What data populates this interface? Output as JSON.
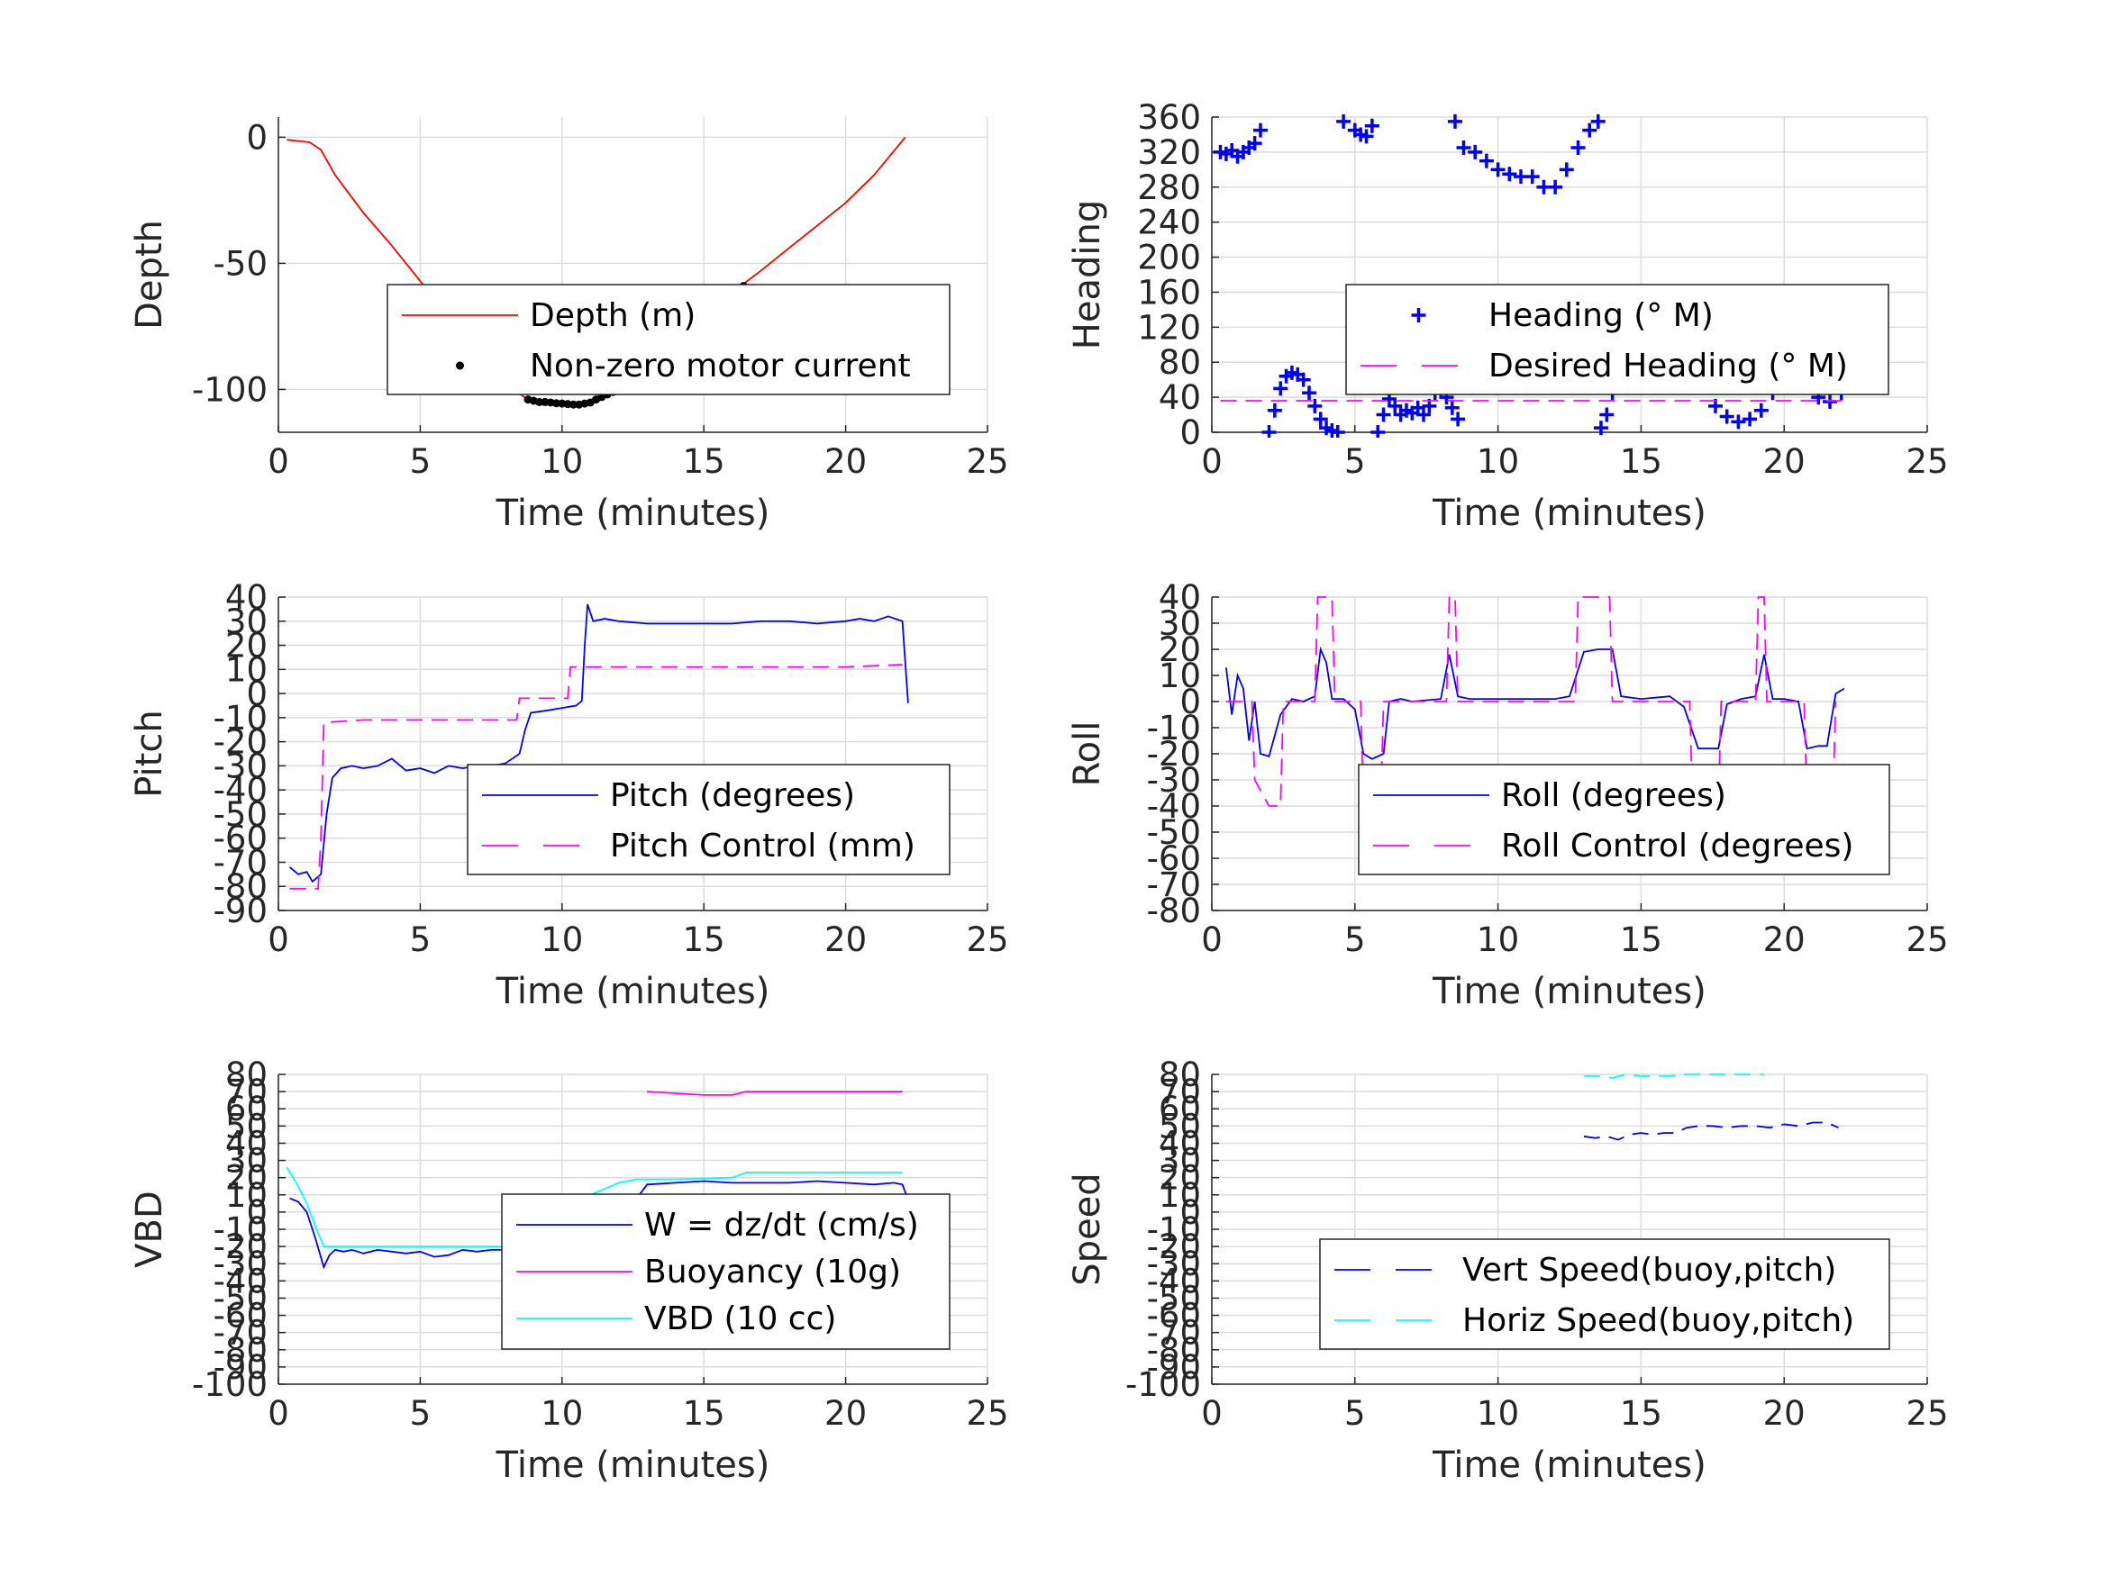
{
  "chart_data": [
    {
      "id": "depth",
      "type": "line",
      "xlabel": "Time (minutes)",
      "ylabel": "Depth",
      "xlim": [
        0,
        25
      ],
      "ylim": [
        -117,
        8
      ],
      "xticks": [
        0,
        5,
        10,
        15,
        20,
        25
      ],
      "yticks": [
        0,
        -50,
        -100
      ],
      "grid": true,
      "legend_position": "right",
      "series": [
        {
          "name": "Depth (m)",
          "style": "line",
          "color": "#ff0000",
          "x": [
            0.3,
            1.1,
            1.5,
            2.0,
            3.0,
            4.0,
            5.0,
            6.0,
            7.0,
            8.0,
            8.8,
            9.5,
            10.6,
            11.2,
            12.0,
            13.0,
            14.0,
            15.0,
            16.3,
            17.0,
            18.0,
            19.0,
            20.0,
            21.0,
            22.1
          ],
          "y": [
            -1,
            -2,
            -5,
            -15,
            -30,
            -43,
            -57,
            -72,
            -86,
            -98,
            -104,
            -105,
            -106,
            -104,
            -98,
            -88,
            -78,
            -69,
            -59,
            -53,
            -44,
            -35,
            -26,
            -15,
            0
          ]
        },
        {
          "name": "Non-zero motor current",
          "style": "marker",
          "color": "#000000",
          "x": [
            8.8,
            9.0,
            9.2,
            9.4,
            9.6,
            9.8,
            10.0,
            10.2,
            10.4,
            10.6,
            10.8,
            11.0,
            11.2,
            11.4,
            11.6,
            11.8,
            12.0,
            12.2,
            12.4,
            14.1,
            16.2,
            16.4
          ],
          "y": [
            -104,
            -104.5,
            -105,
            -105,
            -105.2,
            -105.5,
            -105.6,
            -105.8,
            -106,
            -106,
            -105.6,
            -105.2,
            -104,
            -103,
            -102,
            -101,
            -99,
            -97,
            -95,
            -79,
            -60,
            -59
          ]
        }
      ]
    },
    {
      "id": "heading",
      "type": "line",
      "xlabel": "Time (minutes)",
      "ylabel": "Heading",
      "xlim": [
        0,
        25
      ],
      "ylim": [
        0,
        360
      ],
      "xticks": [
        0,
        5,
        10,
        15,
        20,
        25
      ],
      "yticks": [
        0,
        40,
        80,
        120,
        160,
        200,
        240,
        280,
        320,
        360
      ],
      "grid": true,
      "legend_position": "right",
      "series": [
        {
          "name": "Heading (° M)",
          "style": "plus",
          "color": "#0000ff",
          "x": [
            0.3,
            0.5,
            0.7,
            0.9,
            1.1,
            1.3,
            1.5,
            1.7,
            2.0,
            2.2,
            2.4,
            2.6,
            2.8,
            3.0,
            3.2,
            3.4,
            3.6,
            3.8,
            4.0,
            4.2,
            4.4,
            4.6,
            5.0,
            5.2,
            5.4,
            5.6,
            5.8,
            6.0,
            6.2,
            6.4,
            6.6,
            6.8,
            7.0,
            7.2,
            7.4,
            7.6,
            7.8,
            8.0,
            8.2,
            8.4,
            8.6,
            8.5,
            8.8,
            9.2,
            9.6,
            10.0,
            10.4,
            10.8,
            11.2,
            11.6,
            12.0,
            12.4,
            12.8,
            13.2,
            13.5,
            13.6,
            13.8,
            14.0,
            14.3,
            14.6,
            15.0,
            15.4,
            15.7,
            16.0,
            16.4,
            16.8,
            17.2,
            17.6,
            18.0,
            18.4,
            18.8,
            19.2,
            19.6,
            20.0,
            20.4,
            20.8,
            21.2,
            21.6,
            22.0
          ],
          "y": [
            320,
            318,
            322,
            315,
            320,
            325,
            330,
            345,
            0,
            25,
            50,
            64,
            68,
            66,
            60,
            45,
            30,
            15,
            5,
            2,
            0,
            355,
            345,
            340,
            338,
            350,
            0,
            20,
            38,
            30,
            20,
            25,
            22,
            28,
            20,
            30,
            45,
            50,
            40,
            28,
            15,
            355,
            325,
            320,
            310,
            300,
            295,
            292,
            292,
            280,
            280,
            300,
            325,
            345,
            355,
            5,
            20,
            45,
            75,
            110,
            140,
            155,
            158,
            150,
            125,
            95,
            60,
            30,
            18,
            12,
            15,
            25,
            45,
            55,
            62,
            55,
            40,
            35,
            45
          ]
        },
        {
          "name": "Desired Heading (° M)",
          "style": "dashed",
          "color": "#ff00ff",
          "x": [
            0.3,
            22.1
          ],
          "y": [
            36,
            36
          ]
        }
      ]
    },
    {
      "id": "pitch",
      "type": "line",
      "xlabel": "Time (minutes)",
      "ylabel": "Pitch",
      "xlim": [
        0,
        25
      ],
      "ylim": [
        -90,
        40
      ],
      "xticks": [
        0,
        5,
        10,
        15,
        20,
        25
      ],
      "yticks": [
        40,
        30,
        20,
        10,
        0,
        -10,
        -20,
        -30,
        -40,
        -50,
        -60,
        -70,
        -80,
        -90
      ],
      "grid": true,
      "legend_position": "right",
      "series": [
        {
          "name": "Pitch (degrees)",
          "style": "line",
          "color": "#0000ff",
          "x": [
            0.4,
            0.7,
            1.0,
            1.2,
            1.5,
            1.7,
            1.9,
            2.2,
            2.6,
            3.0,
            3.5,
            4.0,
            4.5,
            5.0,
            5.5,
            6.0,
            6.5,
            7.0,
            7.5,
            8.0,
            8.5,
            8.7,
            8.9,
            9.5,
            10.0,
            10.5,
            10.7,
            10.8,
            10.9,
            11.1,
            11.5,
            12.0,
            13.0,
            14.0,
            15.0,
            16.0,
            17.0,
            18.0,
            19.0,
            20.0,
            20.5,
            21.0,
            21.5,
            22.0,
            22.2
          ],
          "y": [
            -72,
            -75,
            -74,
            -78,
            -75,
            -50,
            -35,
            -31,
            -30,
            -31,
            -30,
            -27,
            -32,
            -31,
            -33,
            -30,
            -31,
            -30,
            -30,
            -29,
            -25,
            -15,
            -8,
            -7,
            -6,
            -5,
            -3,
            20,
            37,
            30,
            31,
            30,
            29,
            29,
            29,
            29,
            30,
            30,
            29,
            30,
            31,
            30,
            32,
            30,
            -4
          ]
        },
        {
          "name": "Pitch Control (mm)",
          "style": "dashed",
          "color": "#ff00ff",
          "x": [
            0.4,
            1.4,
            1.5,
            1.6,
            3.0,
            5.0,
            7.0,
            8.4,
            8.5,
            10.2,
            10.3,
            10.9,
            11.0,
            15.0,
            20.0,
            22.0
          ],
          "y": [
            -81,
            -81,
            -60,
            -12,
            -11,
            -11,
            -11,
            -11,
            -2,
            -2,
            11,
            11,
            11,
            11,
            11,
            12
          ]
        }
      ]
    },
    {
      "id": "roll",
      "type": "line",
      "xlabel": "Time (minutes)",
      "ylabel": "Roll",
      "xlim": [
        0,
        25
      ],
      "ylim": [
        -80,
        40
      ],
      "xticks": [
        0,
        5,
        10,
        15,
        20,
        25
      ],
      "yticks": [
        40,
        30,
        20,
        10,
        0,
        -10,
        -20,
        -30,
        -40,
        -50,
        -60,
        -70,
        -80
      ],
      "grid": true,
      "legend_position": "right",
      "series": [
        {
          "name": "Roll (degrees)",
          "style": "line",
          "color": "#0000ff",
          "x": [
            0.5,
            0.7,
            0.9,
            1.1,
            1.3,
            1.5,
            1.7,
            2.0,
            2.4,
            2.8,
            3.2,
            3.6,
            3.8,
            4.0,
            4.2,
            4.6,
            5.0,
            5.3,
            5.6,
            6.0,
            6.2,
            6.6,
            7.0,
            8.0,
            8.3,
            8.6,
            9.0,
            10.0,
            11.0,
            12.0,
            12.5,
            13.0,
            13.5,
            14.0,
            14.3,
            15.0,
            16.0,
            16.5,
            17.0,
            17.7,
            18.0,
            18.5,
            19.0,
            19.3,
            19.6,
            20.0,
            20.5,
            20.8,
            21.2,
            21.5,
            21.8,
            22.1
          ],
          "y": [
            13,
            -5,
            10,
            5,
            -15,
            0,
            -20,
            -21,
            -5,
            1,
            0,
            2,
            20,
            15,
            1,
            1,
            -3,
            -20,
            -22,
            -20,
            0,
            1,
            0,
            1,
            18,
            2,
            1,
            1,
            1,
            1,
            2,
            19,
            20,
            20,
            2,
            1,
            2,
            -2,
            -18,
            -18,
            -1,
            1,
            2,
            18,
            1,
            1,
            0,
            -18,
            -17,
            -17,
            3,
            5
          ]
        },
        {
          "name": "Roll Control (degrees)",
          "style": "dashed",
          "color": "#ff00ff",
          "x": [
            0.5,
            1.4,
            1.5,
            2.0,
            2.4,
            2.5,
            3.6,
            3.7,
            4.2,
            4.3,
            5.2,
            5.3,
            5.9,
            6.0,
            8.2,
            8.3,
            8.5,
            8.6,
            12.7,
            12.8,
            13.9,
            14.0,
            16.7,
            16.8,
            17.7,
            17.8,
            19.0,
            19.1,
            19.3,
            19.4,
            20.7,
            20.8,
            21.7,
            21.8
          ],
          "y": [
            0,
            0,
            -30,
            -40,
            -40,
            0,
            0,
            40,
            40,
            0,
            0,
            -40,
            -40,
            0,
            0,
            40,
            40,
            0,
            0,
            40,
            40,
            0,
            0,
            -40,
            -40,
            0,
            0,
            40,
            40,
            0,
            0,
            -40,
            -40,
            0
          ]
        }
      ]
    },
    {
      "id": "vbd",
      "type": "line",
      "xlabel": "Time (minutes)",
      "ylabel": "VBD",
      "xlim": [
        0,
        25
      ],
      "ylim": [
        -100,
        80
      ],
      "xticks": [
        0,
        5,
        10,
        15,
        20,
        25
      ],
      "yticks": [
        80,
        70,
        60,
        50,
        40,
        30,
        20,
        10,
        0,
        -10,
        -20,
        -30,
        -40,
        -50,
        -60,
        -70,
        -80,
        -90,
        -100
      ],
      "grid": true,
      "legend_position": "right",
      "series": [
        {
          "name": "W = dz/dt (cm/s)",
          "style": "line",
          "color": "#0000ff",
          "x": [
            0.4,
            0.7,
            1.0,
            1.3,
            1.6,
            1.8,
            2.0,
            2.3,
            2.6,
            3.0,
            3.5,
            4.0,
            4.5,
            5.0,
            5.5,
            6.0,
            6.5,
            7.0,
            7.5,
            8.0,
            8.4,
            8.7,
            9.0,
            9.5,
            10.0,
            10.5,
            11.0,
            11.5,
            12.0,
            12.5,
            13.0,
            14.0,
            15.0,
            16.0,
            17.0,
            18.0,
            19.0,
            20.0,
            21.0,
            21.7,
            22.0,
            22.2
          ],
          "y": [
            8,
            6,
            0,
            -15,
            -32,
            -25,
            -22,
            -23,
            -22,
            -24,
            -22,
            -23,
            -24,
            -23,
            -26,
            -25,
            -22,
            -23,
            -22,
            -22,
            -18,
            -4,
            -6,
            -5,
            -4,
            -5,
            -2,
            0,
            2,
            5,
            16,
            17,
            18,
            17,
            17,
            17,
            18,
            17,
            16,
            17,
            16,
            7
          ]
        },
        {
          "name": "Buoyancy (10g)",
          "style": "line",
          "color": "#ff00ff",
          "x": [
            13.0,
            14.0,
            15.0,
            16.0,
            16.5,
            17.0,
            18.0,
            19.0,
            20.0,
            21.0,
            22.0
          ],
          "y": [
            70,
            69,
            68,
            68,
            70,
            70,
            70,
            70,
            70,
            70,
            70
          ]
        },
        {
          "name": "VBD (10 cc)",
          "style": "line",
          "color": "#00ffff",
          "x": [
            0.3,
            0.7,
            1.0,
            1.3,
            1.6,
            2.0,
            4.0,
            6.0,
            8.0,
            8.5,
            9.0,
            10.0,
            11.0,
            12.0,
            12.6,
            14.0,
            16.0,
            16.5,
            18.0,
            20.0,
            22.0
          ],
          "y": [
            26,
            15,
            5,
            -8,
            -20,
            -20,
            -20,
            -20,
            -20,
            -17,
            -12,
            0,
            10,
            17,
            19,
            19,
            20,
            23,
            23,
            23,
            23
          ]
        }
      ]
    },
    {
      "id": "speed",
      "type": "line",
      "xlabel": "Time (minutes)",
      "ylabel": "Speed",
      "xlim": [
        0,
        25
      ],
      "ylim": [
        -100,
        80
      ],
      "xticks": [
        0,
        5,
        10,
        15,
        20,
        25
      ],
      "yticks": [
        80,
        70,
        60,
        50,
        40,
        30,
        20,
        10,
        0,
        -10,
        -20,
        -30,
        -40,
        -50,
        -60,
        -70,
        -80,
        -90,
        -100
      ],
      "grid": true,
      "legend_position": "right",
      "series": [
        {
          "name": "Vert Speed(buoy,pitch)",
          "style": "dashed",
          "color": "#0000ff",
          "x": [
            13.0,
            13.4,
            13.8,
            14.2,
            14.6,
            15.0,
            15.4,
            15.8,
            16.2,
            16.6,
            17.0,
            17.5,
            18.0,
            18.5,
            19.0,
            19.5,
            20.0,
            20.5,
            21.0,
            21.5,
            21.9
          ],
          "y": [
            44,
            43,
            44,
            42,
            45,
            46,
            45,
            46,
            46,
            49,
            50,
            50,
            49,
            50,
            50,
            49,
            51,
            50,
            52,
            52,
            49
          ]
        },
        {
          "name": "Horiz Speed(buoy,pitch)",
          "style": "dashed",
          "color": "#00ffff",
          "x": [
            13.0,
            13.5,
            14.0,
            14.5,
            15.0,
            15.5,
            16.0,
            16.5,
            17.0,
            17.5,
            18.0,
            18.5,
            19.0,
            19.3
          ],
          "y": [
            79,
            79,
            78,
            80,
            79,
            79,
            79,
            80,
            80,
            80,
            80,
            80,
            80,
            80
          ]
        }
      ]
    }
  ]
}
